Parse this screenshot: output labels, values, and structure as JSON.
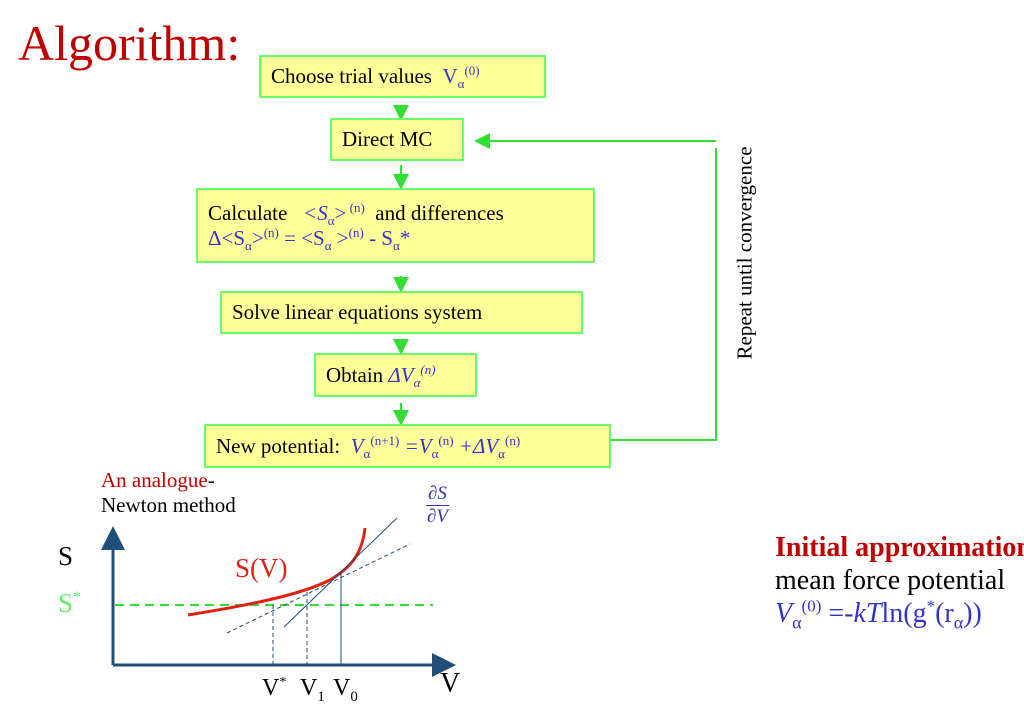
{
  "title": "Algorithm:",
  "colors": {
    "title": "#c00000",
    "box_fill": "#ffff99",
    "box_border": "#66ff66",
    "math": "#3333cc",
    "curve": "#e02010",
    "axes": "#1f4e79"
  },
  "flow": {
    "step1": {
      "text": "Choose trial values",
      "math_base": "V",
      "math_sub": "α",
      "math_sup": "(0)"
    },
    "step2": {
      "text": "Direct MC"
    },
    "step3": {
      "text_a": "Calculate",
      "math_a": "<S",
      "sub_a": "α",
      "math_a2": ">",
      "sup_a": " (n)",
      "text_b": "and differences",
      "line2": {
        "p1": "Δ<S",
        "s1": "α",
        "p2": ">",
        "u1": "(n)",
        "p3": " = <S",
        "s2": "α",
        "p4": " >",
        "u2": "(n)",
        "p5": " - S",
        "s3": "α",
        "p6": "*"
      }
    },
    "step4": {
      "text": "Solve linear  equations system"
    },
    "step5": {
      "text": "Obtain",
      "math": "ΔV",
      "sub": "α",
      "sup": "(n)"
    },
    "step6": {
      "text": "New potential:",
      "m1": "V",
      "s1": "α",
      "u1": "(n+1)",
      "m2": " =V",
      "s2": "α",
      "u2": "(n)",
      "m3": " +ΔV",
      "s3": "α",
      "u3": "(n)"
    },
    "loop_label": "Repeat until convergence"
  },
  "analogue": {
    "line1": "An analogue",
    "dash": "-",
    "line2": "Newton method"
  },
  "graph": {
    "y_label": "S",
    "s_star": "S",
    "s_star_sup": "*",
    "curve_label": "S(V)",
    "deriv_num": "∂S",
    "deriv_den": "∂V",
    "x_label": "V",
    "ticks": [
      {
        "base": "V",
        "sup": "*",
        "sub": ""
      },
      {
        "base": "V",
        "sup": "",
        "sub": "1"
      },
      {
        "base": "V",
        "sup": "",
        "sub": "0"
      }
    ]
  },
  "initial": {
    "heading": "Initial approximation",
    "colon": ":",
    "line2": "mean force potential",
    "f1": "V",
    "f_sub": "α",
    "f_sup": "(0)",
    "f2": " =-",
    "f3": "kT",
    "f4": "ln(g",
    "f_sup2": "*",
    "f5": "(r",
    "f_sub2": "α",
    "f6": "))"
  }
}
